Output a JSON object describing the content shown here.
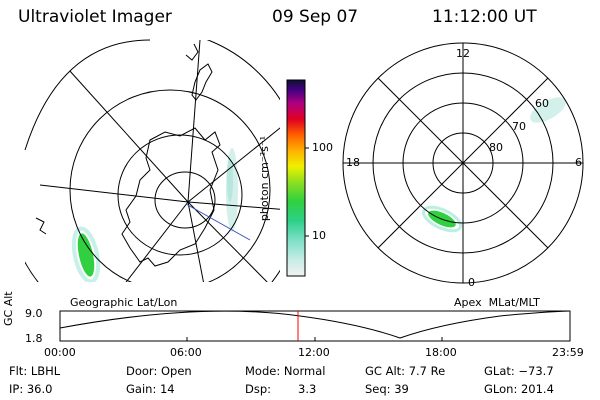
{
  "header": {
    "instrument": "Ultraviolet Imager",
    "date": "09 Sep 07",
    "time": "11:12:00 UT"
  },
  "geographic_panel": {
    "label": "Geographic Lat/Lon"
  },
  "apex_panel": {
    "label": "Apex  MLat/MLT",
    "mlt_labels": [
      "12",
      "18",
      "6",
      "0"
    ],
    "lat_labels": [
      "60",
      "70",
      "80"
    ]
  },
  "colorbar": {
    "label": "photon cm⁻²s⁻¹",
    "ticks": [
      "100",
      "10"
    ],
    "scale": "log"
  },
  "altitude_timeline": {
    "axis_label": "GC Alt",
    "y_ticks": [
      "9.0",
      "1.8"
    ],
    "x_ticks": [
      "00:00",
      "06:00",
      "12:00",
      "18:00",
      "23:59"
    ],
    "marker_time": "11:12",
    "marker_color": "#ff0000"
  },
  "info": {
    "flt": "Flt: LBHL",
    "ip": "IP: 36.0",
    "door": "Door: Open",
    "gain": "Gain: 14",
    "mode": "Mode: Normal",
    "dsp_label": "Dsp:",
    "dsp_value": "3.3",
    "gc_alt": "GC Alt: 7.7 Re",
    "seq": "Seq: 39",
    "glat": "GLat: −73.7",
    "glon": "GLon: 201.4"
  }
}
